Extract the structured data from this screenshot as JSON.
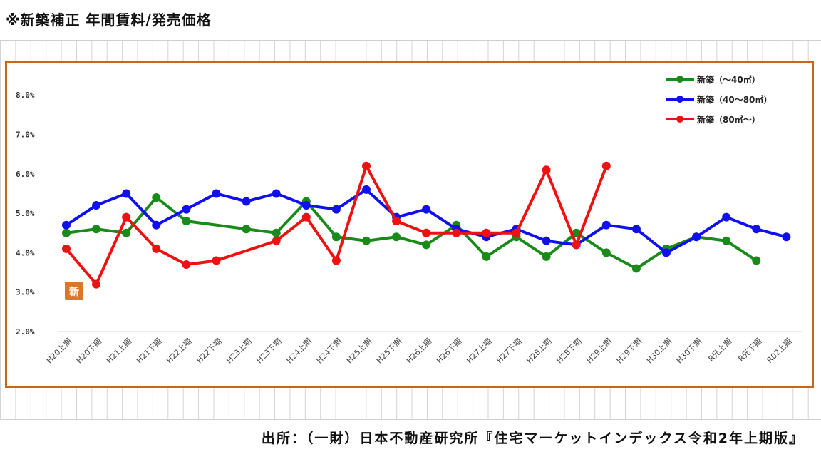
{
  "title": "※新築補正 年間賃料/発売価格",
  "source": "出所：（一財）日本不動産研究所『住宅マーケットインデックス令和2年上期版』",
  "badge": "新",
  "chart_data": {
    "type": "line",
    "title": "",
    "xlabel": "",
    "ylabel": "",
    "ylim": [
      0.02,
      0.08
    ],
    "y_ticks": [
      {
        "value": 0.02,
        "label": "2.0%"
      },
      {
        "value": 0.03,
        "label": "3.0%"
      },
      {
        "value": 0.04,
        "label": "4.0%"
      },
      {
        "value": 0.05,
        "label": "5.0%"
      },
      {
        "value": 0.06,
        "label": "6.0%"
      },
      {
        "value": 0.07,
        "label": "7.0%"
      },
      {
        "value": 0.08,
        "label": "8.0%"
      }
    ],
    "categories": [
      "H20上期",
      "H20下期",
      "H21上期",
      "H21下期",
      "H22上期",
      "H22下期",
      "H23上期",
      "H23下期",
      "H24上期",
      "H24下期",
      "H25上期",
      "H25下期",
      "H26上期",
      "H26下期",
      "H27上期",
      "H27下期",
      "H28上期",
      "H28下期",
      "H29上期",
      "H29下期",
      "H30上期",
      "H30下期",
      "R元上期",
      "R元下期",
      "R02上期"
    ],
    "legend_position": "top-right",
    "series": [
      {
        "name": "新築（～40㎡）",
        "color": "#1a8a1a",
        "values": [
          0.045,
          0.046,
          0.045,
          0.054,
          0.048,
          null,
          0.046,
          0.045,
          0.053,
          0.044,
          0.043,
          0.044,
          0.042,
          0.047,
          0.039,
          0.044,
          0.039,
          0.045,
          0.04,
          0.036,
          0.041,
          0.044,
          0.043,
          0.038,
          null
        ]
      },
      {
        "name": "新築（40～80㎡）",
        "color": "#1010ee",
        "values": [
          0.047,
          0.052,
          0.055,
          0.047,
          0.051,
          0.055,
          0.053,
          0.055,
          0.052,
          0.051,
          0.056,
          0.049,
          0.051,
          0.046,
          0.044,
          0.046,
          0.043,
          0.042,
          0.047,
          0.046,
          0.04,
          0.044,
          0.049,
          0.046,
          0.044
        ]
      },
      {
        "name": "新築（80㎡～）",
        "color": "#ee1111",
        "values": [
          0.041,
          0.032,
          0.049,
          0.041,
          0.037,
          0.038,
          null,
          0.043,
          0.049,
          0.038,
          0.062,
          0.048,
          0.045,
          0.045,
          0.045,
          0.045,
          0.061,
          0.042,
          0.062,
          null,
          null,
          null,
          null,
          null,
          null
        ]
      }
    ]
  }
}
